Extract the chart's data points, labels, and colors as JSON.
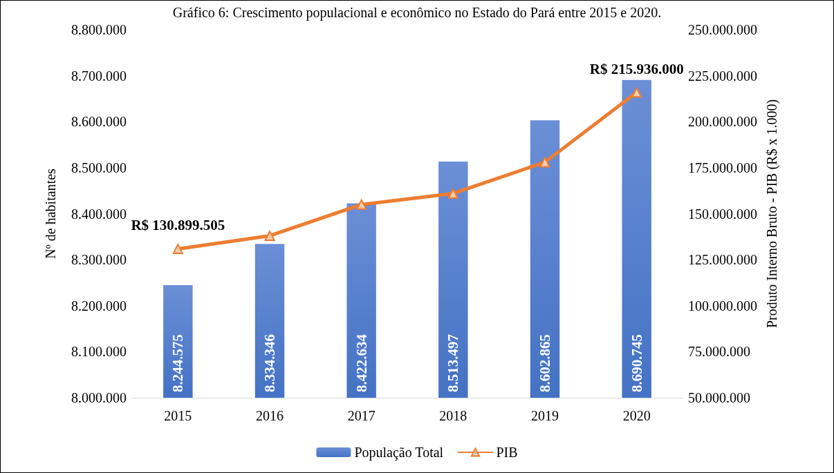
{
  "chart_data": {
    "type": "bar",
    "title": "Gráfico 6: Crescimento populacional e econômico no Estado do Pará entre 2015 e 2020.",
    "ylabel": "Nº de habitantes",
    "y2label": "Produto Interno Bruto - PIB (R$ x 1.000)",
    "categories": [
      "2015",
      "2016",
      "2017",
      "2018",
      "2019",
      "2020"
    ],
    "series": [
      {
        "name": "População Total",
        "color": "#4472c4",
        "values": [
          8244575,
          8334346,
          8422634,
          8513497,
          8602865,
          8690745
        ],
        "value_labels": [
          "8.244.575",
          "8.334.346",
          "8.422.634",
          "8.513.497",
          "8.602.865",
          "8.690.745"
        ]
      },
      {
        "name": "PIB",
        "type": "line",
        "axis": "y2",
        "color": "#ed7d31",
        "marker": "triangle",
        "values": [
          130899505,
          138000000,
          155000000,
          161000000,
          178000000,
          215936000
        ],
        "value_labels": [
          "R$ 130.899.505",
          null,
          null,
          null,
          null,
          "R$ 215.936.000"
        ]
      }
    ],
    "ylim": [
      8000000,
      8800000
    ],
    "yticks": [
      {
        "value": 8000000,
        "label": "8.000.000"
      },
      {
        "value": 8100000,
        "label": "8.100.000"
      },
      {
        "value": 8200000,
        "label": "8.200.000"
      },
      {
        "value": 8300000,
        "label": "8.300.000"
      },
      {
        "value": 8400000,
        "label": "8.400.000"
      },
      {
        "value": 8500000,
        "label": "8.500.000"
      },
      {
        "value": 8600000,
        "label": "8.600.000"
      },
      {
        "value": 8700000,
        "label": "8.700.000"
      },
      {
        "value": 8800000,
        "label": "8.800.000"
      }
    ],
    "y2lim": [
      50000000,
      250000000
    ],
    "y2ticks": [
      {
        "value": 50000000,
        "label": "50.000.000"
      },
      {
        "value": 75000000,
        "label": "75.000.000"
      },
      {
        "value": 100000000,
        "label": "100.000.000"
      },
      {
        "value": 125000000,
        "label": "125.000.000"
      },
      {
        "value": 150000000,
        "label": "150.000.000"
      },
      {
        "value": 175000000,
        "label": "175.000.000"
      },
      {
        "value": 200000000,
        "label": "200.000.000"
      },
      {
        "value": 225000000,
        "label": "225.000.000"
      },
      {
        "value": 250000000,
        "label": "250.000.000"
      }
    ],
    "grid": false,
    "legend": "bottom"
  }
}
